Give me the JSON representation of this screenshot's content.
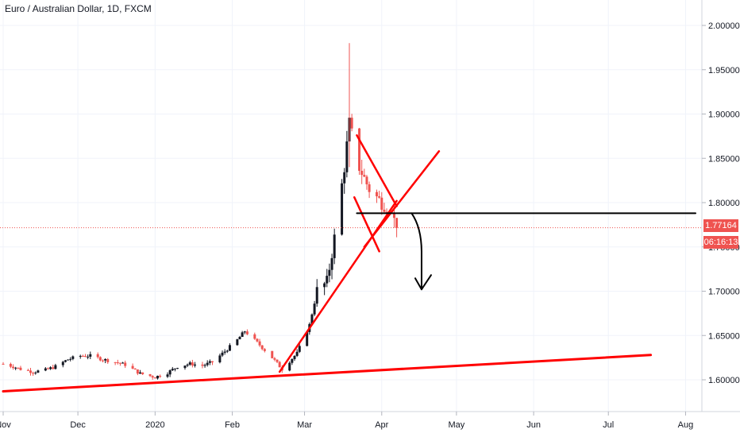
{
  "header": {
    "title": "Euro / Australian Dollar, 1D, FXCM"
  },
  "badges": {
    "last_price": "1.77164",
    "countdown": "06:16:13"
  },
  "colors": {
    "bear": "#ef5350",
    "bull": "#131722",
    "trend": "#ff0000",
    "line": "#000000",
    "grid": "#e0e3eb"
  },
  "chart_data": {
    "type": "candlestick",
    "title": "Euro / Australian Dollar, 1D, FXCM",
    "xlabel": "",
    "ylabel": "",
    "ylim": [
      1.555,
      2.02
    ],
    "y_ticks": [
      "2.00000",
      "1.95000",
      "1.90000",
      "1.85000",
      "1.80000",
      "1.75000",
      "1.70000",
      "1.65000",
      "1.60000"
    ],
    "x_ticks": [
      "Nov",
      "Dec",
      "2020",
      "Feb",
      "Mar",
      "Apr",
      "May",
      "Jun",
      "Jul",
      "Aug"
    ],
    "x_tick_dates": [
      "2019-11-01",
      "2019-12-01",
      "2020-01-01",
      "2020-02-01",
      "2020-03-01",
      "2020-04-01",
      "2020-05-01",
      "2020-06-01",
      "2020-07-01",
      "2020-08-01"
    ],
    "x_range": [
      "2019-11-01",
      "2020-08-05"
    ],
    "last_price": 1.77164,
    "closes": [
      [
        "2019-11-01",
        1.618
      ],
      [
        "2019-11-05",
        1.615
      ],
      [
        "2019-11-08",
        1.612
      ],
      [
        "2019-11-13",
        1.609
      ],
      [
        "2019-11-18",
        1.611
      ],
      [
        "2019-11-22",
        1.615
      ],
      [
        "2019-11-27",
        1.623
      ],
      [
        "2019-12-02",
        1.627
      ],
      [
        "2019-12-06",
        1.627
      ],
      [
        "2019-12-11",
        1.623
      ],
      [
        "2019-12-16",
        1.62
      ],
      [
        "2019-12-20",
        1.617
      ],
      [
        "2019-12-26",
        1.607
      ],
      [
        "2020-01-01",
        1.603
      ],
      [
        "2020-01-06",
        1.608
      ],
      [
        "2020-01-10",
        1.615
      ],
      [
        "2020-01-15",
        1.618
      ],
      [
        "2020-01-20",
        1.616
      ],
      [
        "2020-01-24",
        1.62
      ],
      [
        "2020-01-29",
        1.632
      ],
      [
        "2020-02-03",
        1.645
      ],
      [
        "2020-02-06",
        1.655
      ],
      [
        "2020-02-11",
        1.642
      ],
      [
        "2020-02-17",
        1.625
      ],
      [
        "2020-02-21",
        1.612
      ],
      [
        "2020-02-27",
        1.63
      ],
      [
        "2020-03-03",
        1.662
      ],
      [
        "2020-03-06",
        1.7
      ],
      [
        "2020-03-10",
        1.71
      ],
      [
        "2020-03-13",
        1.76
      ],
      [
        "2020-03-17",
        1.84
      ],
      [
        "2020-03-19",
        1.89
      ],
      [
        "2020-03-23",
        1.84
      ],
      [
        "2020-03-27",
        1.815
      ],
      [
        "2020-04-01",
        1.8
      ],
      [
        "2020-04-03",
        1.795
      ],
      [
        "2020-04-06",
        1.78
      ],
      [
        "2020-04-07",
        1.77164
      ]
    ],
    "annotations": {
      "long_support_line": [
        [
          "2019-11-01",
          1.587
        ],
        [
          "2020-07-18",
          1.628
        ]
      ],
      "rally_support_line": [
        [
          "2020-02-20",
          1.609
        ],
        [
          "2020-04-07",
          1.802
        ]
      ],
      "channel_line_a": [
        [
          "2020-03-22",
          1.876
        ],
        [
          "2020-04-07",
          1.796
        ]
      ],
      "channel_line_b": [
        [
          "2020-03-21",
          1.806
        ],
        [
          "2020-03-31",
          1.745
        ]
      ],
      "cross_line": [
        [
          "2020-03-25",
          1.75
        ],
        [
          "2020-04-24",
          1.858
        ]
      ],
      "horizontal_level": [
        [
          "2020-03-22",
          1.788
        ],
        [
          "2020-08-05",
          1.788
        ]
      ],
      "projected_drop_arrow": [
        [
          "2020-04-13",
          1.788
        ],
        [
          "2020-04-15",
          1.772
        ],
        [
          "2020-04-17",
          1.745
        ],
        [
          "2020-04-17",
          1.72
        ]
      ]
    }
  }
}
